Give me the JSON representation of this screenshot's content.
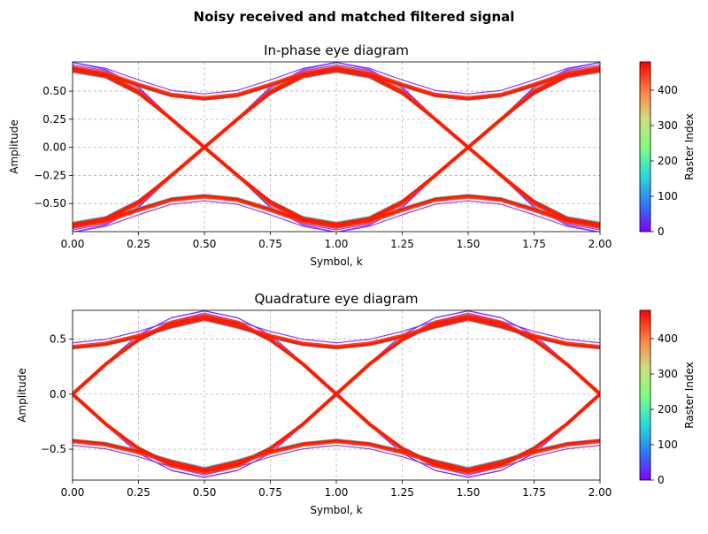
{
  "figure": {
    "suptitle": "Noisy received and matched filtered signal"
  },
  "colormap": {
    "name": "rainbow",
    "stops": [
      "#8000ff",
      "#2c7ef7",
      "#2adcdc",
      "#80ff80",
      "#d4dc7f",
      "#ff7f40",
      "#ff0000"
    ]
  },
  "chart_data": [
    {
      "type": "line",
      "title": "In-phase eye diagram",
      "xlabel": "Symbol, k",
      "ylabel": "Amplitude",
      "xlim": [
        0,
        2
      ],
      "ylim": [
        -0.75,
        0.76
      ],
      "grid": true,
      "x_ticks": [
        0,
        0.25,
        0.5,
        0.75,
        1.0,
        1.25,
        1.5,
        1.75,
        2.0
      ],
      "x_tick_labels": [
        "0.00",
        "0.25",
        "0.50",
        "0.75",
        "1.00",
        "1.25",
        "1.50",
        "1.75",
        "2.00"
      ],
      "y_ticks": [
        -0.5,
        -0.25,
        0,
        0.25,
        0.5
      ],
      "y_tick_labels": [
        "−0.50",
        "−0.25",
        "0.00",
        "0.25",
        "0.50"
      ],
      "x": [
        0,
        0.125,
        0.25,
        0.375,
        0.5,
        0.625,
        0.75,
        0.875,
        1.0,
        1.125,
        1.25,
        1.375,
        1.5,
        1.625,
        1.75,
        1.875,
        2.0
      ],
      "series": [
        {
          "values": [
            0.71,
            0.65,
            0.5,
            0.25,
            0.0,
            -0.25,
            -0.5,
            -0.65,
            -0.71,
            -0.65,
            -0.5,
            -0.25,
            0.0,
            0.25,
            0.5,
            0.65,
            0.71
          ]
        },
        {
          "values": [
            -0.71,
            -0.65,
            -0.5,
            -0.25,
            0.0,
            0.25,
            0.5,
            0.65,
            0.71,
            0.65,
            0.5,
            0.25,
            0.0,
            -0.25,
            -0.5,
            -0.65,
            -0.71
          ]
        },
        {
          "values": [
            0.71,
            0.66,
            0.56,
            0.47,
            0.44,
            0.47,
            0.56,
            0.66,
            0.71,
            0.66,
            0.56,
            0.47,
            0.44,
            0.47,
            0.56,
            0.66,
            0.71
          ]
        },
        {
          "values": [
            -0.71,
            -0.66,
            -0.56,
            -0.47,
            -0.44,
            -0.47,
            -0.56,
            -0.66,
            -0.71,
            -0.66,
            -0.56,
            -0.47,
            -0.44,
            -0.47,
            -0.56,
            -0.66,
            -0.71
          ]
        },
        {
          "values": [
            0.69,
            0.64,
            0.49,
            0.25,
            0.0,
            -0.25,
            -0.49,
            -0.64,
            -0.69,
            -0.64,
            -0.49,
            -0.25,
            0.0,
            0.25,
            0.49,
            0.64,
            0.69
          ]
        },
        {
          "values": [
            -0.69,
            -0.64,
            -0.49,
            -0.25,
            0.0,
            0.25,
            0.49,
            0.64,
            0.69,
            0.64,
            0.49,
            0.25,
            0.0,
            -0.25,
            -0.49,
            -0.64,
            -0.69
          ]
        }
      ],
      "colorbar": {
        "label": "Raster Index",
        "range": [
          0,
          480
        ],
        "ticks": [
          0,
          100,
          200,
          300,
          400
        ],
        "tick_labels": [
          "0",
          "100",
          "200",
          "300",
          "400"
        ]
      }
    },
    {
      "type": "line",
      "title": "Quadrature eye diagram",
      "xlabel": "Symbol, k",
      "ylabel": "Amplitude",
      "xlim": [
        0,
        2
      ],
      "ylim": [
        -0.78,
        0.76
      ],
      "grid": true,
      "x_ticks": [
        0,
        0.25,
        0.5,
        0.75,
        1.0,
        1.25,
        1.5,
        1.75,
        2.0
      ],
      "x_tick_labels": [
        "0.00",
        "0.25",
        "0.50",
        "0.75",
        "1.00",
        "1.25",
        "1.50",
        "1.75",
        "2.00"
      ],
      "y_ticks": [
        -0.5,
        0,
        0.5
      ],
      "y_tick_labels": [
        "−0.5",
        "0.0",
        "0.5"
      ],
      "x": [
        0,
        0.125,
        0.25,
        0.375,
        0.5,
        0.625,
        0.75,
        0.875,
        1.0,
        1.125,
        1.25,
        1.375,
        1.5,
        1.625,
        1.75,
        1.875,
        2.0
      ],
      "series": [
        {
          "values": [
            0.0,
            0.27,
            0.5,
            0.65,
            0.71,
            0.65,
            0.5,
            0.27,
            0.0,
            0.27,
            0.5,
            0.65,
            0.71,
            0.65,
            0.5,
            0.27,
            0.0
          ]
        },
        {
          "values": [
            0.0,
            -0.27,
            -0.5,
            -0.65,
            -0.71,
            -0.65,
            -0.5,
            -0.27,
            0.0,
            -0.27,
            -0.5,
            -0.65,
            -0.71,
            -0.65,
            -0.5,
            -0.27,
            0.0
          ]
        },
        {
          "values": [
            0.0,
            0.27,
            0.5,
            0.65,
            0.71,
            0.65,
            0.5,
            0.27,
            0.0,
            -0.27,
            -0.5,
            -0.65,
            -0.71,
            -0.65,
            -0.5,
            -0.27,
            0.0
          ]
        },
        {
          "values": [
            0.0,
            -0.27,
            -0.5,
            -0.65,
            -0.71,
            -0.65,
            -0.5,
            -0.27,
            0.0,
            0.27,
            0.5,
            0.65,
            0.71,
            0.65,
            0.5,
            0.27,
            0.0
          ]
        },
        {
          "values": [
            0.43,
            0.46,
            0.53,
            0.62,
            0.69,
            0.62,
            0.53,
            0.46,
            0.43,
            0.46,
            0.53,
            0.62,
            0.69,
            0.62,
            0.53,
            0.46,
            0.43
          ]
        },
        {
          "values": [
            -0.43,
            -0.46,
            -0.53,
            -0.62,
            -0.69,
            -0.62,
            -0.53,
            -0.46,
            -0.43,
            -0.46,
            -0.53,
            -0.62,
            -0.69,
            -0.62,
            -0.53,
            -0.46,
            -0.43
          ]
        }
      ],
      "colorbar": {
        "label": "Raster Index",
        "range": [
          0,
          480
        ],
        "ticks": [
          0,
          100,
          200,
          300,
          400
        ],
        "tick_labels": [
          "0",
          "100",
          "200",
          "300",
          "400"
        ]
      }
    }
  ]
}
